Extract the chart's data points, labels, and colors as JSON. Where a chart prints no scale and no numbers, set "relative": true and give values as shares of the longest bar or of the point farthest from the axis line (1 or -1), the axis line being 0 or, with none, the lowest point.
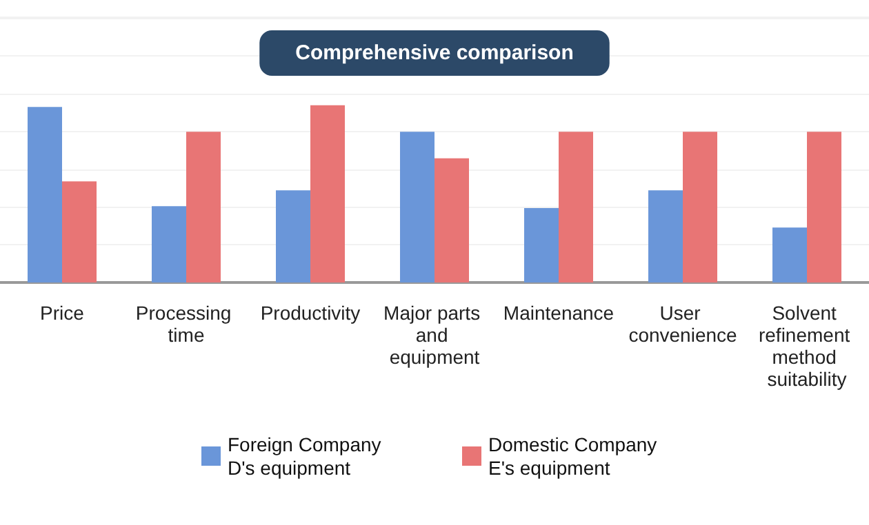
{
  "chart_data": {
    "type": "bar",
    "title": "Comprehensive comparison",
    "relative": true,
    "grid": "y",
    "legend": "bottom",
    "categories": [
      "Price",
      "Processing time",
      "Productivity",
      "Major parts and equipment",
      "Maintenance",
      "User convenience",
      "Solvent refinement method suitability"
    ],
    "series": [
      {
        "name": "Foreign Company D's equipment",
        "color": "#6a96d9",
        "values": [
          0.99,
          0.43,
          0.52,
          0.85,
          0.42,
          0.52,
          0.31
        ]
      },
      {
        "name": "Domestic Company E's equipment",
        "color": "#e87575",
        "values": [
          0.57,
          0.85,
          1,
          0.7,
          0.85,
          0.85,
          0.85
        ]
      }
    ]
  }
}
